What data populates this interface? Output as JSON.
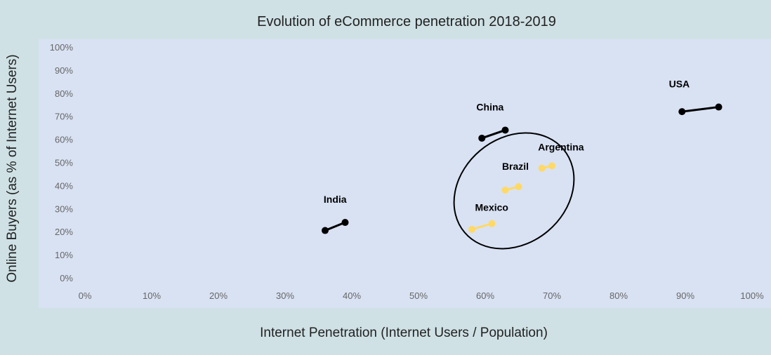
{
  "chart_data": {
    "type": "scatter",
    "title": "Evolution of eCommerce penetration 2018-2019",
    "xlabel": "Internet Penetration (Internet Users / Population)",
    "ylabel": "Online Buyers (as % of Internet Users)",
    "xlim": [
      0,
      100
    ],
    "ylim": [
      0,
      100
    ],
    "x_ticks": [
      "0%",
      "10%",
      "20%",
      "30%",
      "40%",
      "50%",
      "60%",
      "70%",
      "80%",
      "90%",
      "100%"
    ],
    "y_ticks": [
      "0%",
      "10%",
      "20%",
      "30%",
      "40%",
      "50%",
      "60%",
      "70%",
      "80%",
      "90%",
      "100%"
    ],
    "grid": false,
    "series": [
      {
        "name": "India",
        "color": "#000000",
        "points": [
          [
            36,
            20.5
          ],
          [
            39,
            24
          ]
        ]
      },
      {
        "name": "China",
        "color": "#000000",
        "points": [
          [
            59.5,
            60.5
          ],
          [
            63,
            64
          ]
        ]
      },
      {
        "name": "USA",
        "color": "#000000",
        "points": [
          [
            89.5,
            72
          ],
          [
            95,
            74
          ]
        ]
      },
      {
        "name": "Mexico",
        "color": "#ffd966",
        "points": [
          [
            58,
            21
          ],
          [
            61,
            23.5
          ]
        ]
      },
      {
        "name": "Brazil",
        "color": "#ffd966",
        "points": [
          [
            63,
            38
          ],
          [
            65,
            39.5
          ]
        ]
      },
      {
        "name": "Argentina",
        "color": "#ffd966",
        "points": [
          [
            68.5,
            47.5
          ],
          [
            70,
            48.5
          ]
        ]
      }
    ],
    "annotations": [
      {
        "type": "ellipse",
        "encloses": [
          "Mexico",
          "Brazil",
          "Argentina"
        ],
        "color": "#000000"
      }
    ]
  }
}
